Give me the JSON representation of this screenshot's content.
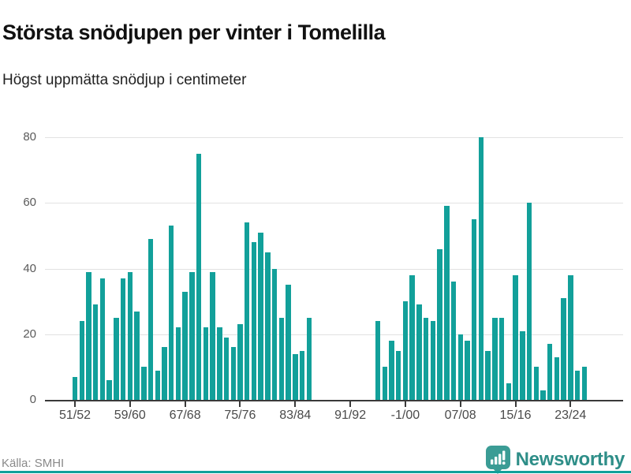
{
  "title": "Största snödjupen per vinter i Tomelilla",
  "subtitle": "Högst uppmätta snödjup i centimeter",
  "footer": {
    "source": "Källa: SMHI",
    "brand": "Newsworthy"
  },
  "colors": {
    "bar": "#12a09a",
    "brand_text": "#2e8e88",
    "grid": "#e2e2e2",
    "axis": "#3a3a3a",
    "muted_text": "#5a5a5a"
  },
  "chart_data": {
    "type": "bar",
    "title": "Största snödjupen per vinter i Tomelilla",
    "subtitle": "Högst uppmätta snödjup i centimeter",
    "unit": "centimeter",
    "ylim": [
      0,
      80
    ],
    "y_ticks": [
      0,
      20,
      40,
      60,
      80
    ],
    "grid": "horizontal",
    "legend": "none",
    "x_tick_indices": [
      0,
      8,
      16,
      24,
      32,
      40,
      48,
      56,
      64,
      72
    ],
    "x_tick_labels": [
      "51/52",
      "59/60",
      "67/68",
      "75/76",
      "83/84",
      "91/92",
      "-1/00",
      "07/08",
      "15/16",
      "23/24"
    ],
    "categories": [
      "51/52",
      "52/53",
      "53/54",
      "54/55",
      "55/56",
      "56/57",
      "57/58",
      "58/59",
      "59/60",
      "60/61",
      "61/62",
      "62/63",
      "63/64",
      "64/65",
      "65/66",
      "66/67",
      "67/68",
      "68/69",
      "69/70",
      "70/71",
      "71/72",
      "72/73",
      "73/74",
      "74/75",
      "75/76",
      "76/77",
      "77/78",
      "78/79",
      "79/80",
      "80/81",
      "81/82",
      "82/83",
      "83/84",
      "84/85",
      "85/86",
      "86/87",
      "87/88",
      "88/89",
      "89/90",
      "90/91",
      "91/92",
      "92/93",
      "93/94",
      "94/95",
      "95/96",
      "96/97",
      "97/98",
      "98/99",
      "99/00",
      "00/01",
      "01/02",
      "02/03",
      "03/04",
      "04/05",
      "05/06",
      "06/07",
      "07/08",
      "08/09",
      "09/10",
      "10/11",
      "11/12",
      "12/13",
      "13/14",
      "14/15",
      "15/16",
      "16/17",
      "17/18",
      "18/19",
      "19/20",
      "20/21",
      "21/22",
      "22/23",
      "23/24",
      "24/25",
      "25/26"
    ],
    "values": [
      7,
      24,
      39,
      29,
      37,
      6,
      25,
      37,
      39,
      27,
      10,
      49,
      9,
      16,
      53,
      22,
      33,
      39,
      75,
      22,
      39,
      22,
      19,
      16,
      23,
      54,
      48,
      51,
      45,
      40,
      25,
      35,
      14,
      15,
      25,
      null,
      null,
      null,
      null,
      null,
      null,
      null,
      null,
      null,
      24,
      10,
      18,
      15,
      30,
      38,
      29,
      25,
      24,
      46,
      59,
      36,
      20,
      18,
      55,
      80,
      15,
      25,
      25,
      5,
      38,
      21,
      60,
      10,
      3,
      17,
      13,
      31,
      38,
      9,
      10
    ]
  }
}
